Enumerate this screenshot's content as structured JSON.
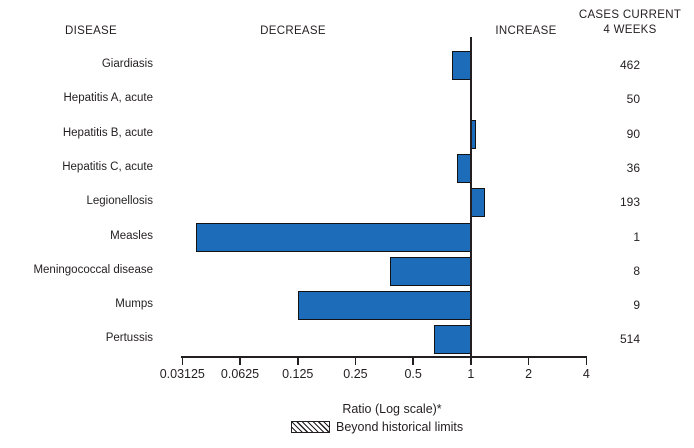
{
  "headers": {
    "disease": "DISEASE",
    "decrease": "DECREASE",
    "increase": "INCREASE",
    "cases_line1": "CASES CURRENT",
    "cases_line2": "4 WEEKS"
  },
  "chart_data": {
    "type": "bar",
    "orientation": "horizontal",
    "x_scale": "log2",
    "baseline_ratio": 1,
    "xlabel": "Ratio (Log scale)*",
    "x_tick_labels": [
      "0.03125",
      "0.0625",
      "0.125",
      "0.25",
      "0.5",
      "1",
      "2",
      "4"
    ],
    "x_range": [
      0.03125,
      4
    ],
    "grid": false,
    "rows": [
      {
        "disease": "Giardiasis",
        "ratio": 0.8,
        "direction": "decrease",
        "cases_current_4_weeks": 462,
        "beyond_historical_limits": false
      },
      {
        "disease": "Hepatitis A, acute",
        "ratio": 1.0,
        "direction": "none",
        "cases_current_4_weeks": 50,
        "beyond_historical_limits": false
      },
      {
        "disease": "Hepatitis B, acute",
        "ratio": 1.06,
        "direction": "increase",
        "cases_current_4_weeks": 90,
        "beyond_historical_limits": false
      },
      {
        "disease": "Hepatitis C, acute",
        "ratio": 0.85,
        "direction": "decrease",
        "cases_current_4_weeks": 36,
        "beyond_historical_limits": false
      },
      {
        "disease": "Legionellosis",
        "ratio": 1.18,
        "direction": "increase",
        "cases_current_4_weeks": 193,
        "beyond_historical_limits": false
      },
      {
        "disease": "Measles",
        "ratio": 0.037,
        "direction": "decrease",
        "cases_current_4_weeks": 1,
        "beyond_historical_limits": false
      },
      {
        "disease": "Meningococcal disease",
        "ratio": 0.38,
        "direction": "decrease",
        "cases_current_4_weeks": 8,
        "beyond_historical_limits": false
      },
      {
        "disease": "Mumps",
        "ratio": 0.125,
        "direction": "decrease",
        "cases_current_4_weeks": 9,
        "beyond_historical_limits": false
      },
      {
        "disease": "Pertussis",
        "ratio": 0.64,
        "direction": "decrease",
        "cases_current_4_weeks": 514,
        "beyond_historical_limits": false
      }
    ]
  },
  "legend": {
    "swatch": "diagonal-hatch",
    "label": "Beyond historical limits"
  },
  "colors": {
    "bar_fill": "#1c6cba",
    "bar_border": "#131313",
    "axis": "#231f20",
    "text": "#231f20"
  }
}
